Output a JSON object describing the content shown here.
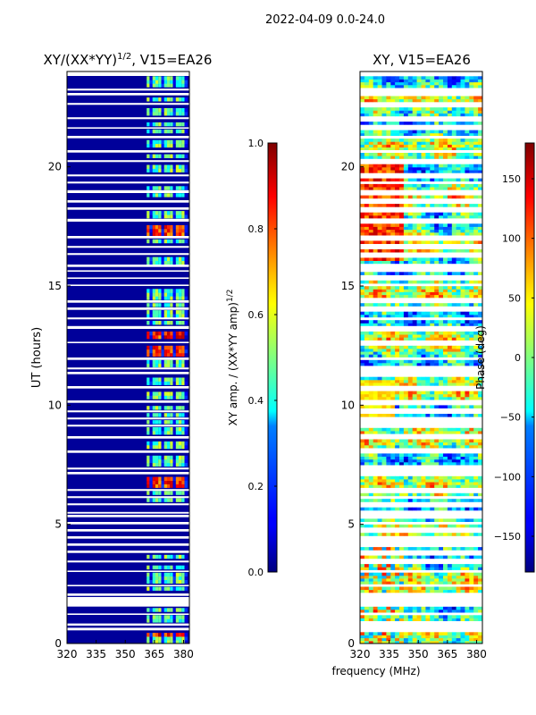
{
  "figure": {
    "suptitle": "2022-04-09 0.0-24.0",
    "xlabel_shared": "frequency (MHz)"
  },
  "chart_data": [
    {
      "type": "heatmap",
      "title_base": "XY/(XX*YY)",
      "title_exp": "1/2",
      "title_tail": ", V15=EA26",
      "xlabel": "",
      "ylabel": "UT (hours)",
      "xlim": [
        320,
        383
      ],
      "ylim": [
        0,
        24
      ],
      "xticks": [
        "320",
        "335",
        "350",
        "365",
        "380"
      ],
      "yticks": [
        "0",
        "5",
        "10",
        "15",
        "20"
      ],
      "colorbar": {
        "label_base": "XY amp. / (XX*YY amp)",
        "label_exp": "1/2",
        "range": [
          0.0,
          1.0
        ],
        "ticks": [
          "0.0",
          "0.2",
          "0.4",
          "0.6",
          "0.8",
          "1.0"
        ],
        "colormap": "jet"
      },
      "description": "Low values (~0.0-0.1) below 360 MHz; banded values 0.3-0.9 between 361-381 MHz, highest near 0.2-0.5 h, 12-13 h and 17-18 h UT"
    },
    {
      "type": "heatmap",
      "title": "XY, V15=EA26",
      "xlabel": "",
      "ylabel": "",
      "xlim": [
        320,
        383
      ],
      "ylim": [
        0,
        24
      ],
      "xticks": [
        "320",
        "335",
        "350",
        "365",
        "380"
      ],
      "yticks": [
        "0",
        "5",
        "10",
        "15",
        "20"
      ],
      "colorbar": {
        "label": "Phase (deg)",
        "range": [
          -180,
          180
        ],
        "ticks": [
          "150",
          "100",
          "50",
          "0",
          "−50",
          "−100",
          "−150"
        ],
        "colormap": "jet"
      },
      "description": "Noisy phase across all frequencies and times"
    }
  ],
  "colors": {
    "jet_low": "#00007f",
    "jet_high": "#7f0000",
    "frame": "#000000",
    "gap": "#ffffff"
  }
}
